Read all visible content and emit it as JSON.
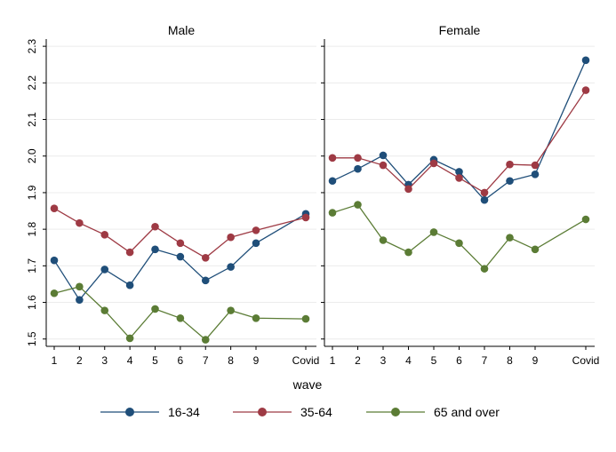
{
  "chart_data": {
    "type": "line",
    "xlabel": "wave",
    "x_categories": [
      "1",
      "2",
      "3",
      "4",
      "5",
      "6",
      "7",
      "8",
      "9",
      "Covid"
    ],
    "ylim": [
      1.48,
      2.31
    ],
    "yticks": [
      1.5,
      1.6,
      1.7,
      1.8,
      1.9,
      2.0,
      2.1,
      2.2,
      2.3
    ],
    "ytick_labels": [
      "1.5",
      "1.6",
      "1.7",
      "1.8",
      "1.9",
      "2.0",
      "2.1",
      "2.2",
      "2.3"
    ],
    "grid": true,
    "legend_position": "bottom",
    "colors": {
      "16-34": "#1f4e79",
      "35-64": "#9e3a44",
      "65 and over": "#5b7c35"
    },
    "panels": [
      {
        "title": "Male",
        "series": [
          {
            "name": "16-34",
            "values": [
              1.715,
              1.607,
              1.69,
              1.647,
              1.745,
              1.725,
              1.66,
              1.697,
              1.762,
              1.842
            ]
          },
          {
            "name": "35-64",
            "values": [
              1.857,
              1.817,
              1.785,
              1.737,
              1.807,
              1.762,
              1.722,
              1.778,
              1.797,
              1.832
            ]
          },
          {
            "name": "65 and over",
            "values": [
              1.625,
              1.643,
              1.578,
              1.502,
              1.582,
              1.557,
              1.498,
              1.578,
              1.557,
              1.555
            ]
          }
        ]
      },
      {
        "title": "Female",
        "series": [
          {
            "name": "16-34",
            "values": [
              1.932,
              1.965,
              2.002,
              1.922,
              1.99,
              1.957,
              1.88,
              1.932,
              1.95,
              2.262
            ]
          },
          {
            "name": "35-64",
            "values": [
              1.995,
              1.995,
              1.975,
              1.91,
              1.98,
              1.94,
              1.9,
              1.977,
              1.975,
              2.18
            ]
          },
          {
            "name": "65 and over",
            "values": [
              1.845,
              1.867,
              1.77,
              1.737,
              1.792,
              1.762,
              1.692,
              1.777,
              1.745,
              1.827
            ]
          }
        ]
      }
    ],
    "legend": [
      "16-34",
      "35-64",
      "65 and over"
    ]
  }
}
